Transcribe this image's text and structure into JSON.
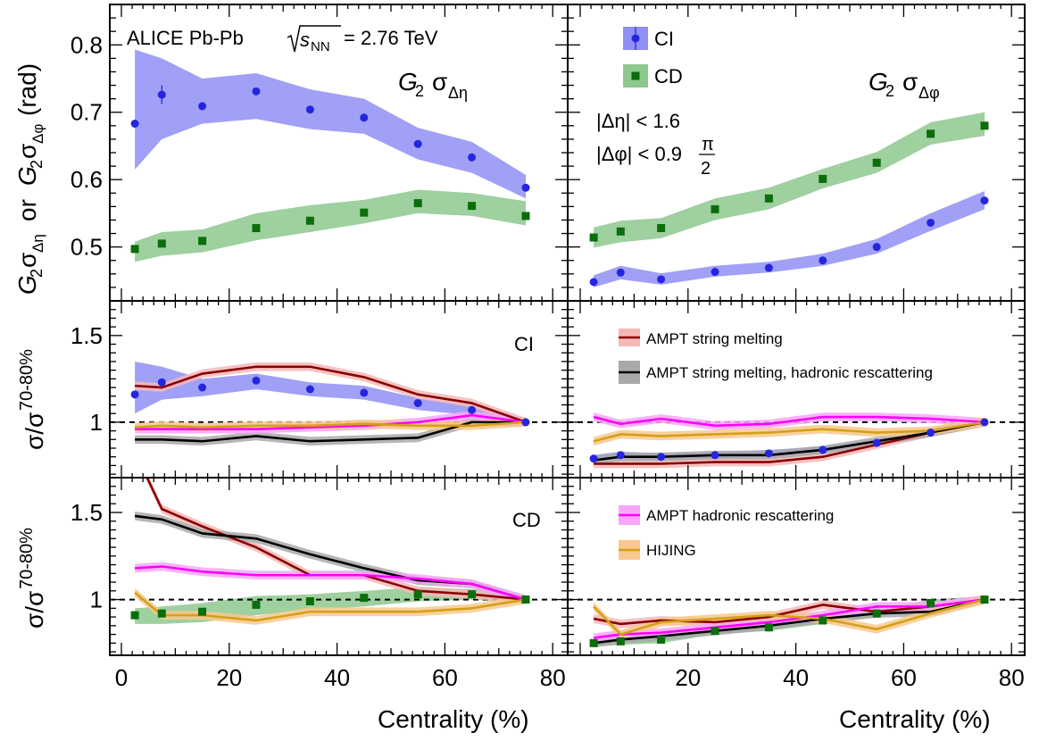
{
  "colors": {
    "ci": "#2525e0",
    "ci_band": "#8f8ff5",
    "cd": "#0a6e0a",
    "cd_band": "#8ec88e",
    "sm": "#8b0000",
    "sm_band": "#f4b8b8",
    "smhr": "#000000",
    "smhr_band": "#a9a9a9",
    "hr": "#ff00ff",
    "hr_band": "#f9a6f9",
    "hij": "#d4a017",
    "hij_band": "#f8c88e"
  },
  "text": {
    "experiment_label": "ALICE Pb-Pb",
    "energy_sym": "s",
    "energy_sub": "NN",
    "energy_val": "= 2.76 TeV",
    "label_G": "G",
    "label_2": "2",
    "label_sigma": "σ",
    "label_deta": "Δη",
    "label_dphi": "Δφ",
    "ylabel_top_or": "or",
    "ylabel_top_unit": "(rad)",
    "ylabel_ratio_main": "σ/σ",
    "ylabel_ratio_sup": "70-80%",
    "xlabel": "Centrality (%)",
    "cut_eta": "|Δη| < 1.6",
    "cut_phi_pre": "|Δφ| < 0.9",
    "cut_phi_num": "π",
    "cut_phi_den": "2",
    "panel_ci": "CI",
    "panel_cd": "CD"
  },
  "legend": {
    "ci": "CI",
    "cd": "CD",
    "sm": "AMPT string melting",
    "smhr": "AMPT string melting, hadronic rescattering",
    "hr": "AMPT hadronic rescattering",
    "hij": "HIJING"
  },
  "chart_data": [
    {
      "type": "scatter",
      "panel": "G2 sigma_deta",
      "xlabel": "",
      "ylabel": "G2σΔη or G2σΔφ (rad)",
      "xlim": [
        0,
        80
      ],
      "ylim": [
        0.42,
        0.86
      ],
      "yticks": [
        "0.5",
        "0.6",
        "0.7",
        "0.8"
      ],
      "series": [
        {
          "name": "CI",
          "x": [
            2.5,
            7.5,
            15,
            25,
            35,
            45,
            55,
            65,
            75
          ],
          "y": [
            0.683,
            0.726,
            0.709,
            0.731,
            0.704,
            0.692,
            0.653,
            0.633,
            0.588
          ],
          "band_lo": [
            0.615,
            0.66,
            0.683,
            0.69,
            0.675,
            0.668,
            0.63,
            0.61,
            0.572
          ],
          "band_hi": [
            0.793,
            0.78,
            0.75,
            0.758,
            0.734,
            0.72,
            0.677,
            0.656,
            0.607
          ]
        },
        {
          "name": "CD",
          "x": [
            2.5,
            7.5,
            15,
            25,
            35,
            45,
            55,
            65,
            75
          ],
          "y": [
            0.497,
            0.505,
            0.509,
            0.528,
            0.539,
            0.551,
            0.565,
            0.561,
            0.546
          ],
          "band_lo": [
            0.478,
            0.487,
            0.492,
            0.51,
            0.522,
            0.535,
            0.55,
            0.546,
            0.532
          ],
          "band_hi": [
            0.508,
            0.522,
            0.526,
            0.55,
            0.562,
            0.57,
            0.585,
            0.58,
            0.568
          ]
        }
      ]
    },
    {
      "type": "scatter",
      "panel": "G2 sigma_dphi",
      "xlabel": "",
      "ylabel": "",
      "xlim": [
        0,
        80
      ],
      "ylim": [
        0.42,
        0.86
      ],
      "series": [
        {
          "name": "CI",
          "x": [
            2.5,
            7.5,
            15,
            25,
            35,
            45,
            55,
            65,
            75
          ],
          "y": [
            0.448,
            0.462,
            0.452,
            0.463,
            0.469,
            0.48,
            0.5,
            0.536,
            0.569
          ],
          "band_lo": [
            0.44,
            0.452,
            0.444,
            0.456,
            0.462,
            0.472,
            0.49,
            0.524,
            0.556
          ],
          "band_hi": [
            0.458,
            0.472,
            0.461,
            0.472,
            0.478,
            0.49,
            0.512,
            0.55,
            0.583
          ]
        },
        {
          "name": "CD",
          "x": [
            2.5,
            7.5,
            15,
            25,
            35,
            45,
            55,
            65,
            75
          ],
          "y": [
            0.514,
            0.523,
            0.528,
            0.556,
            0.572,
            0.601,
            0.625,
            0.668,
            0.68
          ],
          "band_lo": [
            0.499,
            0.507,
            0.513,
            0.54,
            0.556,
            0.587,
            0.61,
            0.652,
            0.665
          ],
          "band_hi": [
            0.529,
            0.539,
            0.543,
            0.572,
            0.588,
            0.616,
            0.641,
            0.685,
            0.7
          ]
        }
      ]
    },
    {
      "type": "line",
      "panel": "ratio CI sigma_deta",
      "xlabel": "",
      "ylabel": "σ/σ70-80%",
      "xlim": [
        0,
        80
      ],
      "ylim": [
        0.68,
        1.7
      ],
      "yticks": [
        "1",
        "1.5"
      ],
      "data_series": {
        "name": "CI",
        "x": [
          2.5,
          7.5,
          15,
          25,
          35,
          45,
          55,
          65,
          75
        ],
        "y": [
          1.16,
          1.23,
          1.2,
          1.24,
          1.19,
          1.17,
          1.11,
          1.07,
          1.0
        ],
        "band_lo": [
          1.05,
          1.13,
          1.15,
          1.19,
          1.15,
          1.13,
          1.07,
          1.04,
          0.98
        ],
        "band_hi": [
          1.35,
          1.32,
          1.25,
          1.28,
          1.23,
          1.21,
          1.14,
          1.1,
          1.02
        ]
      },
      "series": [
        {
          "name": "AMPT string melting",
          "x": [
            2.5,
            7.5,
            15,
            25,
            35,
            45,
            55,
            65,
            75
          ],
          "y": [
            1.21,
            1.2,
            1.28,
            1.32,
            1.32,
            1.26,
            1.16,
            1.11,
            1.0
          ]
        },
        {
          "name": "AMPT string melting, hadronic rescattering",
          "x": [
            2.5,
            7.5,
            15,
            25,
            35,
            45,
            55,
            65,
            75
          ],
          "y": [
            0.9,
            0.9,
            0.89,
            0.92,
            0.89,
            0.9,
            0.91,
            1.0,
            1.0
          ]
        },
        {
          "name": "AMPT hadronic rescattering",
          "x": [
            2.5,
            7.5,
            15,
            25,
            35,
            45,
            55,
            65,
            75
          ],
          "y": [
            0.96,
            0.96,
            0.96,
            0.96,
            0.97,
            0.98,
            1.0,
            1.04,
            1.0
          ]
        },
        {
          "name": "HIJING",
          "x": [
            2.5,
            7.5,
            15,
            25,
            35,
            45,
            55,
            65,
            75
          ],
          "y": [
            0.97,
            0.98,
            0.97,
            0.98,
            0.98,
            0.99,
            0.98,
            0.98,
            1.0
          ]
        }
      ]
    },
    {
      "type": "line",
      "panel": "ratio CI sigma_dphi",
      "xlabel": "",
      "ylabel": "",
      "xlim": [
        0,
        80
      ],
      "ylim": [
        0.68,
        1.7
      ],
      "data_series": {
        "name": "CI",
        "x": [
          2.5,
          7.5,
          15,
          25,
          35,
          45,
          55,
          65,
          75
        ],
        "y": [
          0.79,
          0.81,
          0.8,
          0.81,
          0.82,
          0.84,
          0.88,
          0.94,
          1.0
        ],
        "band_lo": [
          0.77,
          0.79,
          0.78,
          0.79,
          0.8,
          0.82,
          0.86,
          0.92,
          0.99
        ],
        "band_hi": [
          0.81,
          0.83,
          0.82,
          0.83,
          0.84,
          0.86,
          0.9,
          0.96,
          1.01
        ]
      },
      "series": [
        {
          "name": "AMPT string melting",
          "x": [
            2.5,
            7.5,
            15,
            25,
            35,
            45,
            55,
            65,
            75
          ],
          "y": [
            0.76,
            0.76,
            0.76,
            0.77,
            0.77,
            0.8,
            0.87,
            0.94,
            1.0
          ]
        },
        {
          "name": "AMPT string melting, hadronic rescattering",
          "x": [
            2.5,
            7.5,
            15,
            25,
            35,
            45,
            55,
            65,
            75
          ],
          "y": [
            0.78,
            0.8,
            0.8,
            0.81,
            0.81,
            0.84,
            0.89,
            0.94,
            1.0
          ]
        },
        {
          "name": "AMPT hadronic rescattering",
          "x": [
            2.5,
            7.5,
            15,
            25,
            35,
            45,
            55,
            65,
            75
          ],
          "y": [
            1.03,
            0.99,
            1.02,
            0.98,
            0.99,
            1.03,
            1.03,
            1.02,
            1.0
          ]
        },
        {
          "name": "HIJING",
          "x": [
            2.5,
            7.5,
            15,
            25,
            35,
            45,
            55,
            65,
            75
          ],
          "y": [
            0.89,
            0.93,
            0.92,
            0.93,
            0.94,
            0.96,
            0.94,
            0.95,
            1.0
          ]
        }
      ]
    },
    {
      "type": "line",
      "panel": "ratio CD sigma_deta",
      "xlabel": "Centrality (%)",
      "ylabel": "σ/σ70-80%",
      "xlim": [
        0,
        80
      ],
      "ylim": [
        0.68,
        1.7
      ],
      "xticks": [
        "0",
        "20",
        "40",
        "60",
        "80"
      ],
      "yticks": [
        "1",
        "1.5"
      ],
      "data_series": {
        "name": "CD",
        "x": [
          2.5,
          7.5,
          15,
          25,
          35,
          45,
          55,
          65,
          75
        ],
        "y": [
          0.91,
          0.92,
          0.93,
          0.97,
          0.99,
          1.01,
          1.03,
          1.03,
          1.0
        ],
        "band_lo": [
          0.86,
          0.86,
          0.87,
          0.91,
          0.94,
          0.96,
          0.99,
          1.0,
          0.98
        ],
        "band_hi": [
          0.95,
          0.96,
          0.98,
          1.02,
          1.03,
          1.05,
          1.07,
          1.06,
          1.02
        ]
      },
      "series": [
        {
          "name": "AMPT string melting",
          "x": [
            2.5,
            7.5,
            15,
            25,
            35,
            45,
            55,
            65,
            75
          ],
          "y": [
            1.85,
            1.52,
            1.42,
            1.3,
            1.14,
            1.14,
            1.05,
            1.03,
            1.0
          ]
        },
        {
          "name": "AMPT string melting, hadronic rescattering",
          "x": [
            2.5,
            7.5,
            15,
            25,
            35,
            45,
            55,
            65,
            75
          ],
          "y": [
            1.48,
            1.46,
            1.38,
            1.35,
            1.26,
            1.18,
            1.11,
            1.09,
            1.0
          ]
        },
        {
          "name": "AMPT hadronic rescattering",
          "x": [
            2.5,
            7.5,
            15,
            25,
            35,
            45,
            55,
            65,
            75
          ],
          "y": [
            1.18,
            1.19,
            1.16,
            1.14,
            1.14,
            1.14,
            1.12,
            1.09,
            1.0
          ]
        },
        {
          "name": "HIJING",
          "x": [
            2.5,
            7.5,
            15,
            25,
            35,
            45,
            55,
            65,
            75
          ],
          "y": [
            1.04,
            0.91,
            0.91,
            0.88,
            0.93,
            0.93,
            0.93,
            0.95,
            1.0
          ]
        }
      ]
    },
    {
      "type": "line",
      "panel": "ratio CD sigma_dphi",
      "xlabel": "Centrality (%)",
      "ylabel": "",
      "xlim": [
        0,
        80
      ],
      "ylim": [
        0.68,
        1.7
      ],
      "xticks": [
        "20",
        "40",
        "60",
        "80"
      ],
      "data_series": {
        "name": "CD",
        "x": [
          2.5,
          7.5,
          15,
          25,
          35,
          45,
          55,
          65,
          75
        ],
        "y": [
          0.75,
          0.76,
          0.77,
          0.82,
          0.84,
          0.88,
          0.92,
          0.98,
          1.0
        ],
        "band_lo": [
          0.73,
          0.74,
          0.75,
          0.8,
          0.82,
          0.86,
          0.9,
          0.96,
          0.98
        ],
        "band_hi": [
          0.77,
          0.78,
          0.79,
          0.84,
          0.86,
          0.9,
          0.94,
          1.0,
          1.02
        ]
      },
      "series": [
        {
          "name": "AMPT string melting",
          "x": [
            2.5,
            7.5,
            15,
            25,
            35,
            45,
            55,
            65,
            75
          ],
          "y": [
            0.89,
            0.86,
            0.88,
            0.87,
            0.9,
            0.97,
            0.93,
            0.96,
            1.0
          ]
        },
        {
          "name": "AMPT string melting, hadronic rescattering",
          "x": [
            2.5,
            7.5,
            15,
            25,
            35,
            45,
            55,
            65,
            75
          ],
          "y": [
            0.75,
            0.77,
            0.79,
            0.82,
            0.85,
            0.89,
            0.92,
            0.93,
            1.0
          ]
        },
        {
          "name": "AMPT hadronic rescattering",
          "x": [
            2.5,
            7.5,
            15,
            25,
            35,
            45,
            55,
            65,
            75
          ],
          "y": [
            0.78,
            0.8,
            0.81,
            0.84,
            0.87,
            0.91,
            0.96,
            0.96,
            1.0
          ]
        },
        {
          "name": "HIJING",
          "x": [
            2.5,
            7.5,
            15,
            25,
            35,
            45,
            55,
            65,
            75
          ],
          "y": [
            0.96,
            0.8,
            0.87,
            0.89,
            0.91,
            0.89,
            0.83,
            0.92,
            1.0
          ]
        }
      ]
    }
  ]
}
